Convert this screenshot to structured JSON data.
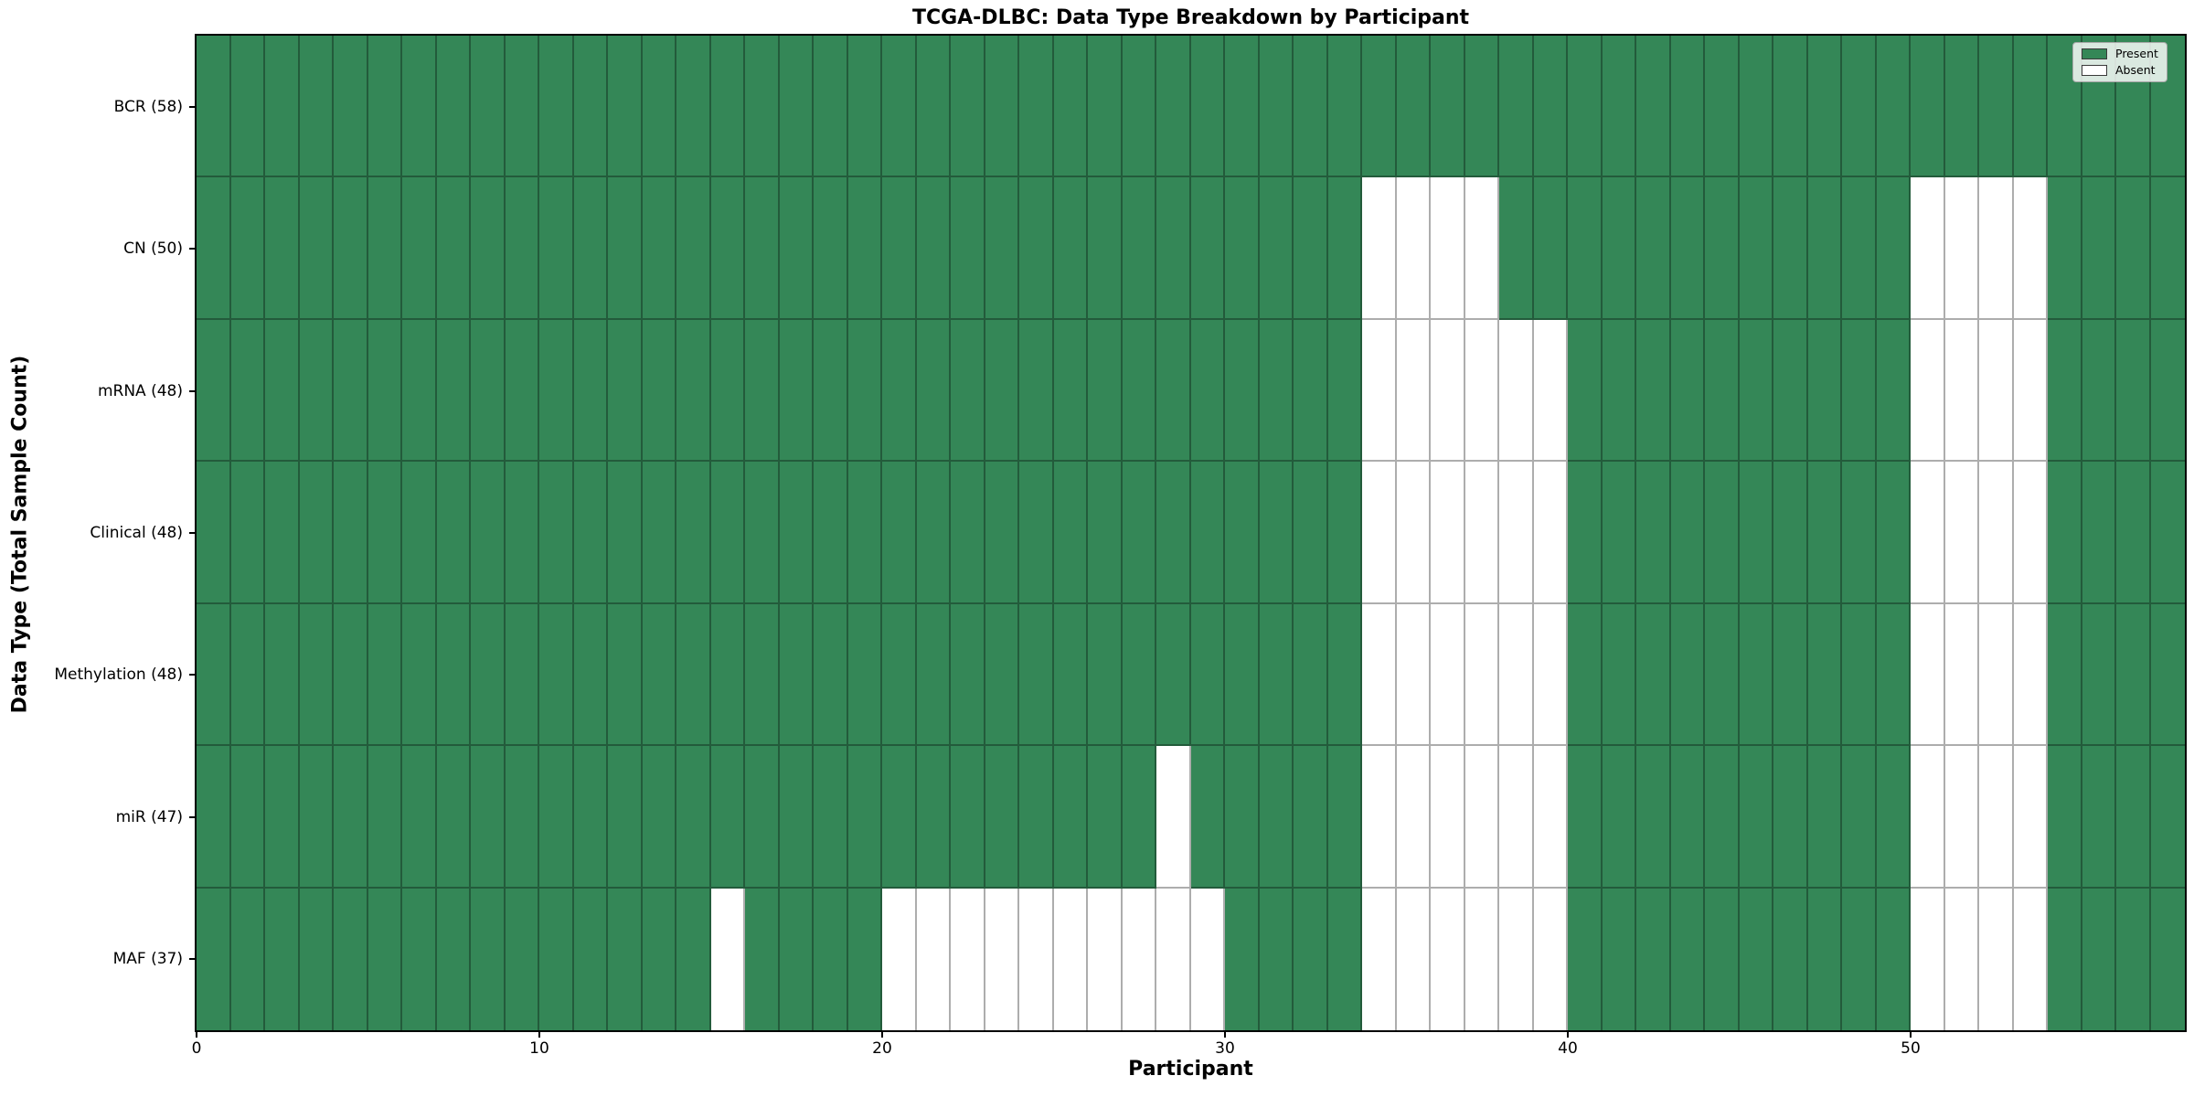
{
  "title": "TCGA-DLBC: Data Type Breakdown by Participant",
  "axes": {
    "x_label": "Participant",
    "y_label": "Data Type (Total Sample Count)"
  },
  "legend": {
    "present_label": "Present",
    "absent_label": "Absent"
  },
  "colors": {
    "present": "#348757",
    "absent": "#ffffff",
    "gridline": "rgba(0,0,0,0.32)",
    "spine": "#000000"
  },
  "chart_data": {
    "type": "heatmap",
    "title": "TCGA-DLBC: Data Type Breakdown by Participant",
    "xlabel": "Participant",
    "ylabel": "Data Type (Total Sample Count)",
    "n_participants": 58,
    "x_ticks": [
      0,
      10,
      20,
      30,
      40,
      50
    ],
    "cell_states": [
      "Present",
      "Absent"
    ],
    "rows": [
      {
        "label": "BCR (58)",
        "data_type": "BCR",
        "total": 58,
        "absent_participants": []
      },
      {
        "label": "CN (50)",
        "data_type": "CN",
        "total": 50,
        "absent_participants": [
          34,
          35,
          36,
          37,
          50,
          51,
          52,
          53
        ]
      },
      {
        "label": "mRNA (48)",
        "data_type": "mRNA",
        "total": 48,
        "absent_participants": [
          34,
          35,
          36,
          37,
          38,
          39,
          50,
          51,
          52,
          53
        ]
      },
      {
        "label": "Clinical (48)",
        "data_type": "Clinical",
        "total": 48,
        "absent_participants": [
          34,
          35,
          36,
          37,
          38,
          39,
          50,
          51,
          52,
          53
        ]
      },
      {
        "label": "Methylation (48)",
        "data_type": "Methylation",
        "total": 48,
        "absent_participants": [
          34,
          35,
          36,
          37,
          38,
          39,
          50,
          51,
          52,
          53
        ]
      },
      {
        "label": "miR (47)",
        "data_type": "miR",
        "total": 47,
        "absent_participants": [
          28,
          34,
          35,
          36,
          37,
          38,
          39,
          50,
          51,
          52,
          53
        ]
      },
      {
        "label": "MAF (37)",
        "data_type": "MAF",
        "total": 37,
        "absent_participants": [
          15,
          20,
          21,
          22,
          23,
          24,
          25,
          26,
          27,
          28,
          29,
          34,
          35,
          36,
          37,
          38,
          39,
          50,
          51,
          52,
          53
        ]
      }
    ],
    "legend_position": "upper right",
    "grid": true
  }
}
